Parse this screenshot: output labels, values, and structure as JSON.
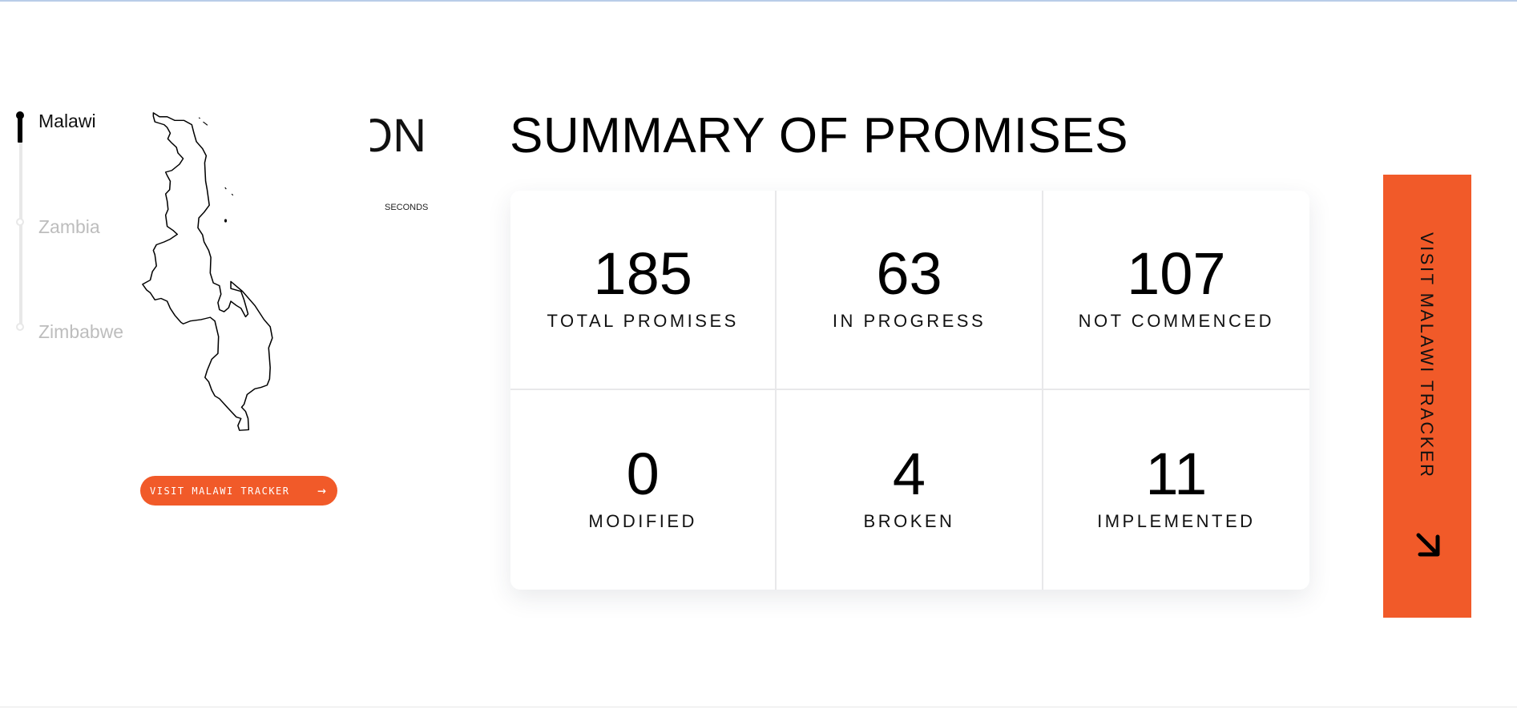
{
  "timeline": {
    "items": [
      {
        "label": "Malawi",
        "active": true
      },
      {
        "label": "Zambia",
        "active": false
      },
      {
        "label": "Zimbabwe",
        "active": false
      }
    ]
  },
  "map": {
    "icon": "malawi-map-outline"
  },
  "partial_heading": "ON",
  "countdown_unit": "SECONDS",
  "visit_button": {
    "label": "VISIT MALAWI TRACKER",
    "icon": "arrow-right-icon"
  },
  "summary": {
    "title": "SUMMARY OF PROMISES",
    "stats": [
      {
        "value": "185",
        "label": "TOTAL PROMISES"
      },
      {
        "value": "63",
        "label": "IN PROGRESS"
      },
      {
        "value": "107",
        "label": "NOT COMMENCED"
      },
      {
        "value": "0",
        "label": "MODIFIED"
      },
      {
        "value": "4",
        "label": "BROKEN"
      },
      {
        "value": "11",
        "label": "IMPLEMENTED"
      }
    ]
  },
  "side_tracker": {
    "label": "VISIT MALAWI TRACKER",
    "icon": "arrow-down-right-icon"
  },
  "colors": {
    "accent": "#f15a29",
    "inactive_text": "#bdbdbd",
    "divider": "#e8e8ea"
  }
}
